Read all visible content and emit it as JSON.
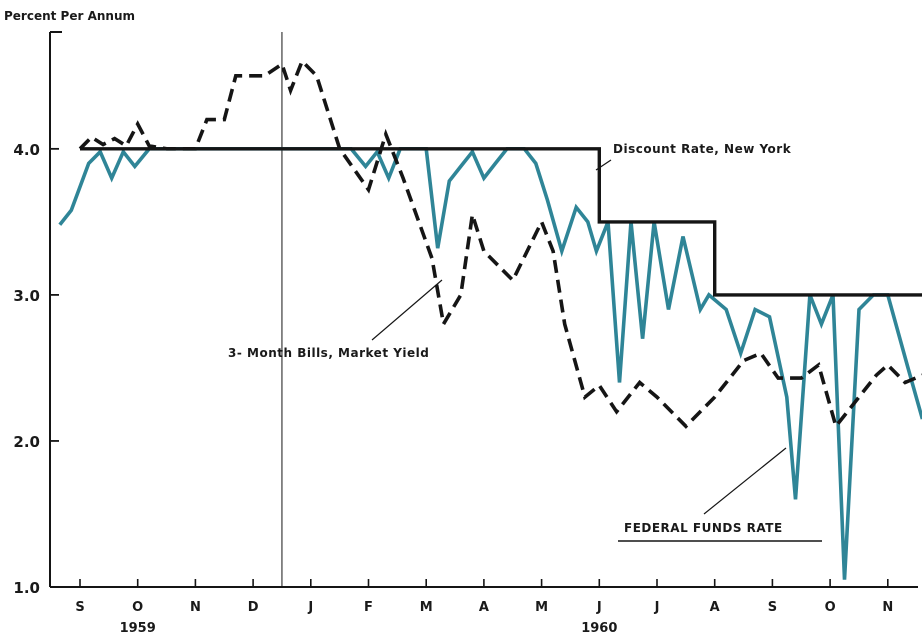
{
  "chart_data": {
    "type": "line",
    "unit_label": "Percent Per Annum",
    "ylim": [
      1.0,
      4.8
    ],
    "y_ticks": [
      "1.0",
      "2.0",
      "3.0",
      "4.0"
    ],
    "months": [
      "S",
      "O",
      "N",
      "D",
      "J",
      "F",
      "M",
      "A",
      "M",
      "J",
      "J",
      "A",
      "S",
      "O",
      "N"
    ],
    "years": [
      {
        "label": "1959",
        "month_index": 1
      },
      {
        "label": "1960",
        "month_index": 9
      }
    ],
    "year_divider_month": 4,
    "annotations": {
      "discount": "Discount Rate, New York",
      "bills": "3- Month Bills, Market Yield",
      "fed": "FEDERAL FUNDS RATE"
    },
    "series": [
      {
        "key": "discount",
        "color": "#151515",
        "style": "solid",
        "points": [
          [
            0.0,
            4.0
          ],
          [
            9.0,
            4.0
          ],
          [
            9.0,
            3.5
          ],
          [
            11.0,
            3.5
          ],
          [
            11.0,
            3.0
          ],
          [
            14.6,
            3.0
          ]
        ]
      },
      {
        "key": "bills",
        "color": "#151515",
        "style": "dashed",
        "points": [
          [
            0.0,
            4.0
          ],
          [
            0.2,
            4.08
          ],
          [
            0.4,
            4.03
          ],
          [
            0.6,
            4.07
          ],
          [
            0.8,
            4.02
          ],
          [
            1.0,
            4.17
          ],
          [
            1.2,
            4.02
          ],
          [
            1.5,
            4.0
          ],
          [
            2.0,
            4.0
          ],
          [
            2.2,
            4.2
          ],
          [
            2.5,
            4.2
          ],
          [
            2.7,
            4.5
          ],
          [
            3.2,
            4.5
          ],
          [
            3.5,
            4.58
          ],
          [
            3.65,
            4.4
          ],
          [
            3.85,
            4.6
          ],
          [
            4.1,
            4.5
          ],
          [
            4.5,
            4.0
          ],
          [
            5.0,
            3.72
          ],
          [
            5.3,
            4.1
          ],
          [
            5.6,
            3.8
          ],
          [
            6.1,
            3.25
          ],
          [
            6.3,
            2.8
          ],
          [
            6.6,
            3.0
          ],
          [
            6.8,
            3.55
          ],
          [
            7.0,
            3.3
          ],
          [
            7.5,
            3.1
          ],
          [
            8.0,
            3.5
          ],
          [
            8.2,
            3.3
          ],
          [
            8.4,
            2.8
          ],
          [
            8.75,
            2.3
          ],
          [
            9.0,
            2.38
          ],
          [
            9.3,
            2.2
          ],
          [
            9.7,
            2.4
          ],
          [
            10.0,
            2.3
          ],
          [
            10.5,
            2.1
          ],
          [
            11.0,
            2.3
          ],
          [
            11.5,
            2.55
          ],
          [
            11.8,
            2.6
          ],
          [
            12.1,
            2.43
          ],
          [
            12.5,
            2.43
          ],
          [
            12.8,
            2.52
          ],
          [
            13.1,
            2.1
          ],
          [
            13.5,
            2.3
          ],
          [
            13.8,
            2.45
          ],
          [
            14.0,
            2.52
          ],
          [
            14.3,
            2.4
          ],
          [
            14.6,
            2.45
          ]
        ]
      },
      {
        "key": "fed",
        "color": "#2f8597",
        "style": "solid",
        "points": [
          [
            -0.35,
            3.48
          ],
          [
            -0.15,
            3.58
          ],
          [
            0.15,
            3.9
          ],
          [
            0.35,
            3.98
          ],
          [
            0.55,
            3.8
          ],
          [
            0.75,
            3.98
          ],
          [
            0.95,
            3.88
          ],
          [
            1.2,
            4.0
          ],
          [
            1.5,
            4.0
          ],
          [
            4.7,
            4.0
          ],
          [
            4.95,
            3.88
          ],
          [
            5.15,
            3.98
          ],
          [
            5.35,
            3.8
          ],
          [
            5.55,
            4.0
          ],
          [
            6.0,
            4.0
          ],
          [
            6.2,
            3.32
          ],
          [
            6.4,
            3.78
          ],
          [
            6.6,
            3.88
          ],
          [
            6.8,
            3.98
          ],
          [
            7.0,
            3.8
          ],
          [
            7.2,
            3.9
          ],
          [
            7.4,
            4.0
          ],
          [
            7.7,
            4.0
          ],
          [
            7.9,
            3.9
          ],
          [
            8.1,
            3.65
          ],
          [
            8.35,
            3.3
          ],
          [
            8.6,
            3.6
          ],
          [
            8.8,
            3.5
          ],
          [
            8.95,
            3.3
          ],
          [
            9.15,
            3.5
          ],
          [
            9.35,
            2.4
          ],
          [
            9.55,
            3.5
          ],
          [
            9.75,
            2.7
          ],
          [
            9.95,
            3.5
          ],
          [
            10.2,
            2.9
          ],
          [
            10.45,
            3.4
          ],
          [
            10.75,
            2.9
          ],
          [
            10.9,
            3.0
          ],
          [
            11.2,
            2.9
          ],
          [
            11.45,
            2.6
          ],
          [
            11.7,
            2.9
          ],
          [
            11.95,
            2.85
          ],
          [
            12.25,
            2.3
          ],
          [
            12.4,
            1.6
          ],
          [
            12.65,
            3.0
          ],
          [
            12.85,
            2.8
          ],
          [
            13.05,
            3.0
          ],
          [
            13.25,
            1.05
          ],
          [
            13.5,
            2.9
          ],
          [
            13.75,
            3.0
          ],
          [
            14.0,
            3.0
          ],
          [
            14.35,
            2.5
          ],
          [
            14.6,
            2.15
          ]
        ]
      }
    ]
  }
}
